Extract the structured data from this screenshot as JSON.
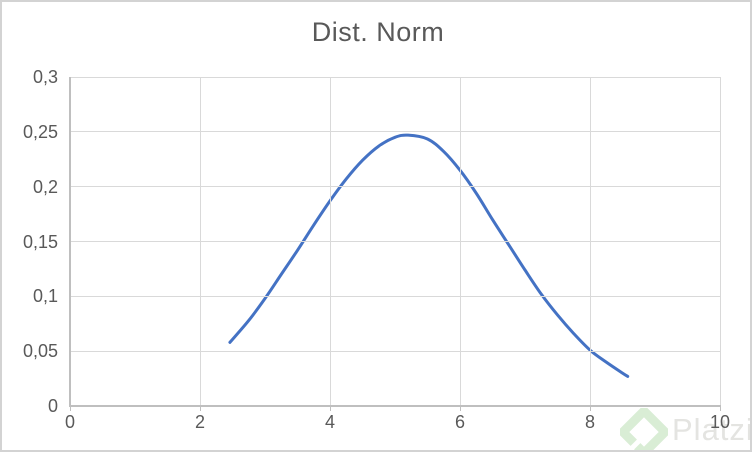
{
  "window": {
    "background": "#ffffff",
    "frame_border_color": "#d3d3d3"
  },
  "chart_data": {
    "type": "line",
    "title": "Dist. Norm",
    "xlabel": "",
    "ylabel": "",
    "xlim": [
      0,
      10
    ],
    "ylim": [
      0,
      0.3
    ],
    "grid": true,
    "legend": "none",
    "x_ticks": {
      "values": [
        0,
        2,
        4,
        6,
        8,
        10
      ],
      "labels": [
        "0",
        "2",
        "4",
        "6",
        "8",
        "10"
      ]
    },
    "y_ticks": {
      "values": [
        0,
        0.05,
        0.1,
        0.15,
        0.2,
        0.25,
        0.3
      ],
      "labels": [
        "0",
        "0,05",
        "0,1",
        "0,15",
        "0,2",
        "0,25",
        "0,3"
      ]
    },
    "series": [
      {
        "name": "Dist. Norm",
        "color": "#4472c4",
        "x": [
          2.46,
          2.75,
          3.0,
          3.25,
          3.5,
          3.75,
          4.0,
          4.25,
          4.5,
          4.75,
          5.0,
          5.2,
          5.5,
          5.75,
          6.0,
          6.25,
          6.5,
          6.75,
          7.0,
          7.25,
          7.5,
          7.75,
          8.0,
          8.25,
          8.5,
          8.58
        ],
        "y": [
          0.058,
          0.078,
          0.098,
          0.12,
          0.142,
          0.165,
          0.187,
          0.207,
          0.224,
          0.237,
          0.245,
          0.247,
          0.2435,
          0.232,
          0.215,
          0.194,
          0.17,
          0.147,
          0.124,
          0.102,
          0.083,
          0.066,
          0.051,
          0.04,
          0.03,
          0.027
        ]
      }
    ],
    "colors": {
      "title": "#595959",
      "tick_labels": "#595959",
      "gridlines": "#d9d9d9",
      "axis_lines": "#bfbfbf"
    }
  },
  "watermark": {
    "text": "Platzi",
    "text_color": "#e4e4e1",
    "logo_color": "#d9edd5"
  }
}
